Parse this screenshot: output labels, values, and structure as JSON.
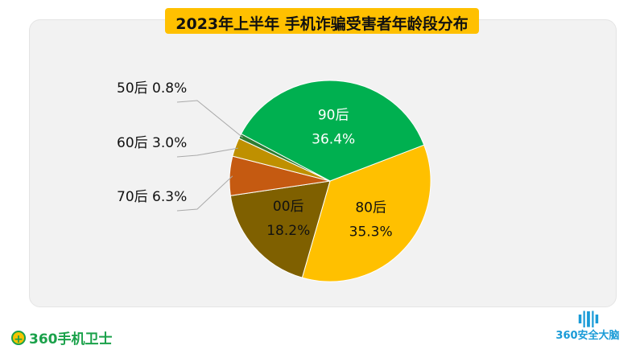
{
  "chart_data": {
    "type": "pie",
    "title": "2023年上半年 手机诈骗受害者年龄段分布",
    "slices": [
      {
        "label": "80后",
        "value": 35.3,
        "display": "35.3%",
        "color": "#ffc000"
      },
      {
        "label": "00后",
        "value": 18.2,
        "display": "18.2%",
        "color": "#7f6000"
      },
      {
        "label": "70后",
        "value": 6.3,
        "display": "6.3%",
        "color": "#c55a11"
      },
      {
        "label": "60后",
        "value": 3.0,
        "display": "3.0%",
        "color": "#bf9000"
      },
      {
        "label": "50后",
        "value": 0.8,
        "display": "0.8%",
        "color": "#2e7d32"
      },
      {
        "label": "90后",
        "value": 36.4,
        "display": "36.4%",
        "color": "#00b050"
      }
    ],
    "start_angle_deg": 69
  },
  "footer": {
    "left_logo": "360手机卫士",
    "right_logo": "360安全大脑"
  }
}
